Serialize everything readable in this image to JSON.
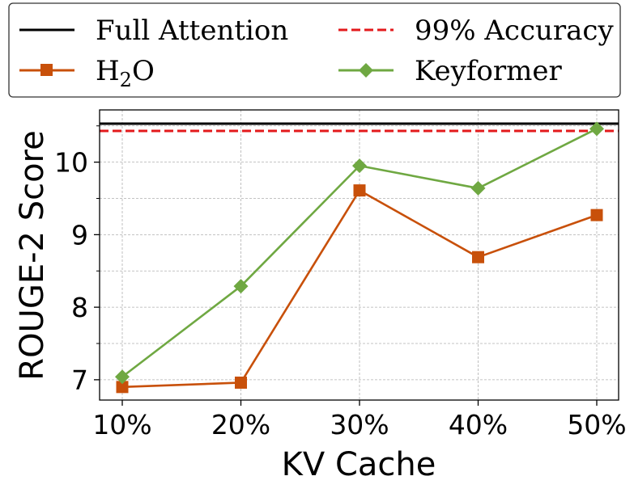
{
  "chart_data": {
    "type": "line",
    "xlabel": "KV Cache",
    "ylabel": "ROUGE-2 Score",
    "categories": [
      "10%",
      "20%",
      "30%",
      "40%",
      "50%"
    ],
    "ylim": [
      6.72,
      10.72
    ],
    "yticks": [
      7,
      8,
      9,
      10
    ],
    "grid": true,
    "legend_position": "top",
    "reference_lines": [
      {
        "name": "Full Attention",
        "value": 10.53,
        "color": "#000000",
        "style": "solid"
      },
      {
        "name": "99% Accuracy",
        "value": 10.43,
        "color": "#e31a1c",
        "style": "dashed"
      }
    ],
    "series": [
      {
        "name": "H₂O",
        "marker": "square",
        "color": "#c8500a",
        "values": [
          6.9,
          6.96,
          9.61,
          8.69,
          9.27
        ]
      },
      {
        "name": "Keyformer",
        "marker": "diamond",
        "color": "#6fa842",
        "values": [
          7.04,
          8.29,
          9.95,
          9.64,
          10.46
        ]
      }
    ]
  },
  "legend": {
    "full_attention": "Full Attention",
    "accuracy_99": "99% Accuracy",
    "h2o_base": "H",
    "h2o_sub": "2",
    "h2o_tail": "O",
    "keyformer": "Keyformer"
  }
}
